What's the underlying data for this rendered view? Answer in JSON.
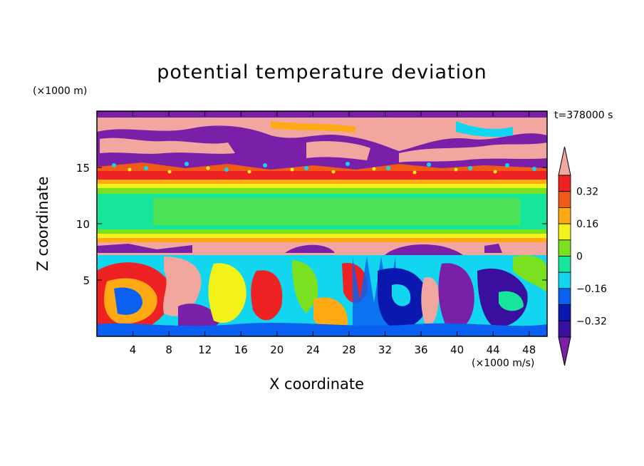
{
  "chart_data": {
    "type": "heatmap",
    "title": "potential temperature deviation",
    "xlabel": "X coordinate",
    "ylabel": "Z coordinate",
    "x_unit": "(×1000 m/s)",
    "y_unit": "(×1000 m)",
    "time_label": "t=378000 s",
    "xlim": [
      0,
      50
    ],
    "ylim": [
      0,
      20
    ],
    "x_ticks": [
      "4",
      "8",
      "12",
      "16",
      "20",
      "24",
      "28",
      "32",
      "36",
      "40",
      "44",
      "48"
    ],
    "y_ticks": [
      "5",
      "10",
      "15"
    ],
    "colorbar": {
      "labels": [
        "0.32",
        "0.16",
        "0",
        "−0.16",
        "−0.32"
      ],
      "levels": [
        -0.4,
        -0.32,
        -0.24,
        -0.16,
        -0.08,
        0,
        0.08,
        0.16,
        0.24,
        0.32,
        0.4
      ],
      "colors": [
        "#7a1fa8",
        "#3a0fa0",
        "#0a18b0",
        "#0a60f0",
        "#12d6f0",
        "#16e69a",
        "#7ae020",
        "#f2f21a",
        "#ffaa14",
        "#f05a16",
        "#ee2222",
        "#f2a6a0"
      ],
      "extend": "both"
    },
    "layers": [
      {
        "z": [
          19.4,
          20
        ],
        "value": "high"
      },
      {
        "z": [
          14.2,
          19.4
        ],
        "value": "mixed"
      },
      {
        "z": [
          8.5,
          14.2
        ],
        "value": "near zero"
      },
      {
        "z": [
          0,
          8.5
        ],
        "value": "mixed"
      }
    ]
  }
}
